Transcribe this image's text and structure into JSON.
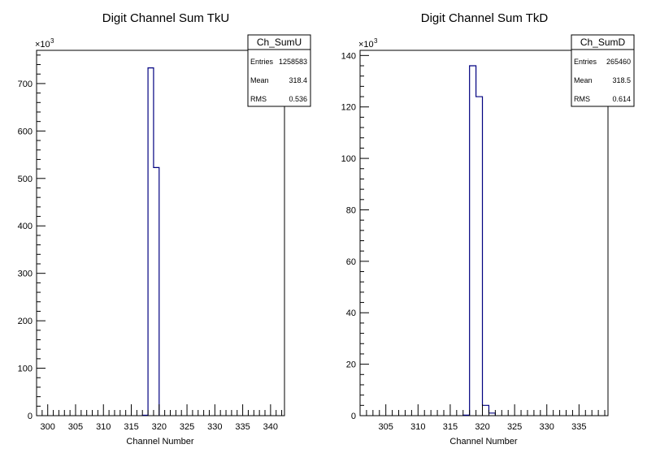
{
  "chart_data": [
    {
      "type": "histogram",
      "title": "Digit Channel Sum TkU",
      "xlabel": "Channel Number",
      "ylabel": "",
      "xlim": [
        298,
        342.5
      ],
      "ylim": [
        0,
        770
      ],
      "y_multiplier": "×10",
      "y_multiplier_exp": "3",
      "x_ticks": [
        300,
        305,
        310,
        315,
        320,
        325,
        330,
        335,
        340
      ],
      "y_ticks": [
        0,
        100,
        200,
        300,
        400,
        500,
        600,
        700
      ],
      "bins": [
        {
          "x0": 317,
          "x1": 318,
          "value": 1
        },
        {
          "x0": 318,
          "x1": 319,
          "value": 733
        },
        {
          "x0": 319,
          "x1": 320,
          "value": 523
        }
      ],
      "line_color": "#000080",
      "stats": {
        "name": "Ch_SumU",
        "rows": [
          {
            "label": "Entries",
            "value": "1258583"
          },
          {
            "label": "Mean",
            "value": "318.4"
          },
          {
            "label": "RMS",
            "value": "0.536"
          }
        ]
      }
    },
    {
      "type": "histogram",
      "title": "Digit Channel Sum TkD",
      "xlabel": "Channel Number",
      "ylabel": "",
      "xlim": [
        301,
        339.5
      ],
      "ylim": [
        0,
        142
      ],
      "y_multiplier": "×10",
      "y_multiplier_exp": "3",
      "x_ticks": [
        305,
        310,
        315,
        320,
        325,
        330,
        335
      ],
      "y_ticks": [
        0,
        20,
        40,
        60,
        80,
        100,
        120,
        140
      ],
      "bins": [
        {
          "x0": 317,
          "x1": 318,
          "value": 0.2
        },
        {
          "x0": 318,
          "x1": 319,
          "value": 136
        },
        {
          "x0": 319,
          "x1": 320,
          "value": 124
        },
        {
          "x0": 320,
          "x1": 321,
          "value": 4
        },
        {
          "x0": 321,
          "x1": 322,
          "value": 1
        }
      ],
      "line_color": "#000080",
      "stats": {
        "name": "Ch_SumD",
        "rows": [
          {
            "label": "Entries",
            "value": "265460"
          },
          {
            "label": "Mean",
            "value": "318.5"
          },
          {
            "label": "RMS",
            "value": "0.614"
          }
        ]
      }
    }
  ]
}
